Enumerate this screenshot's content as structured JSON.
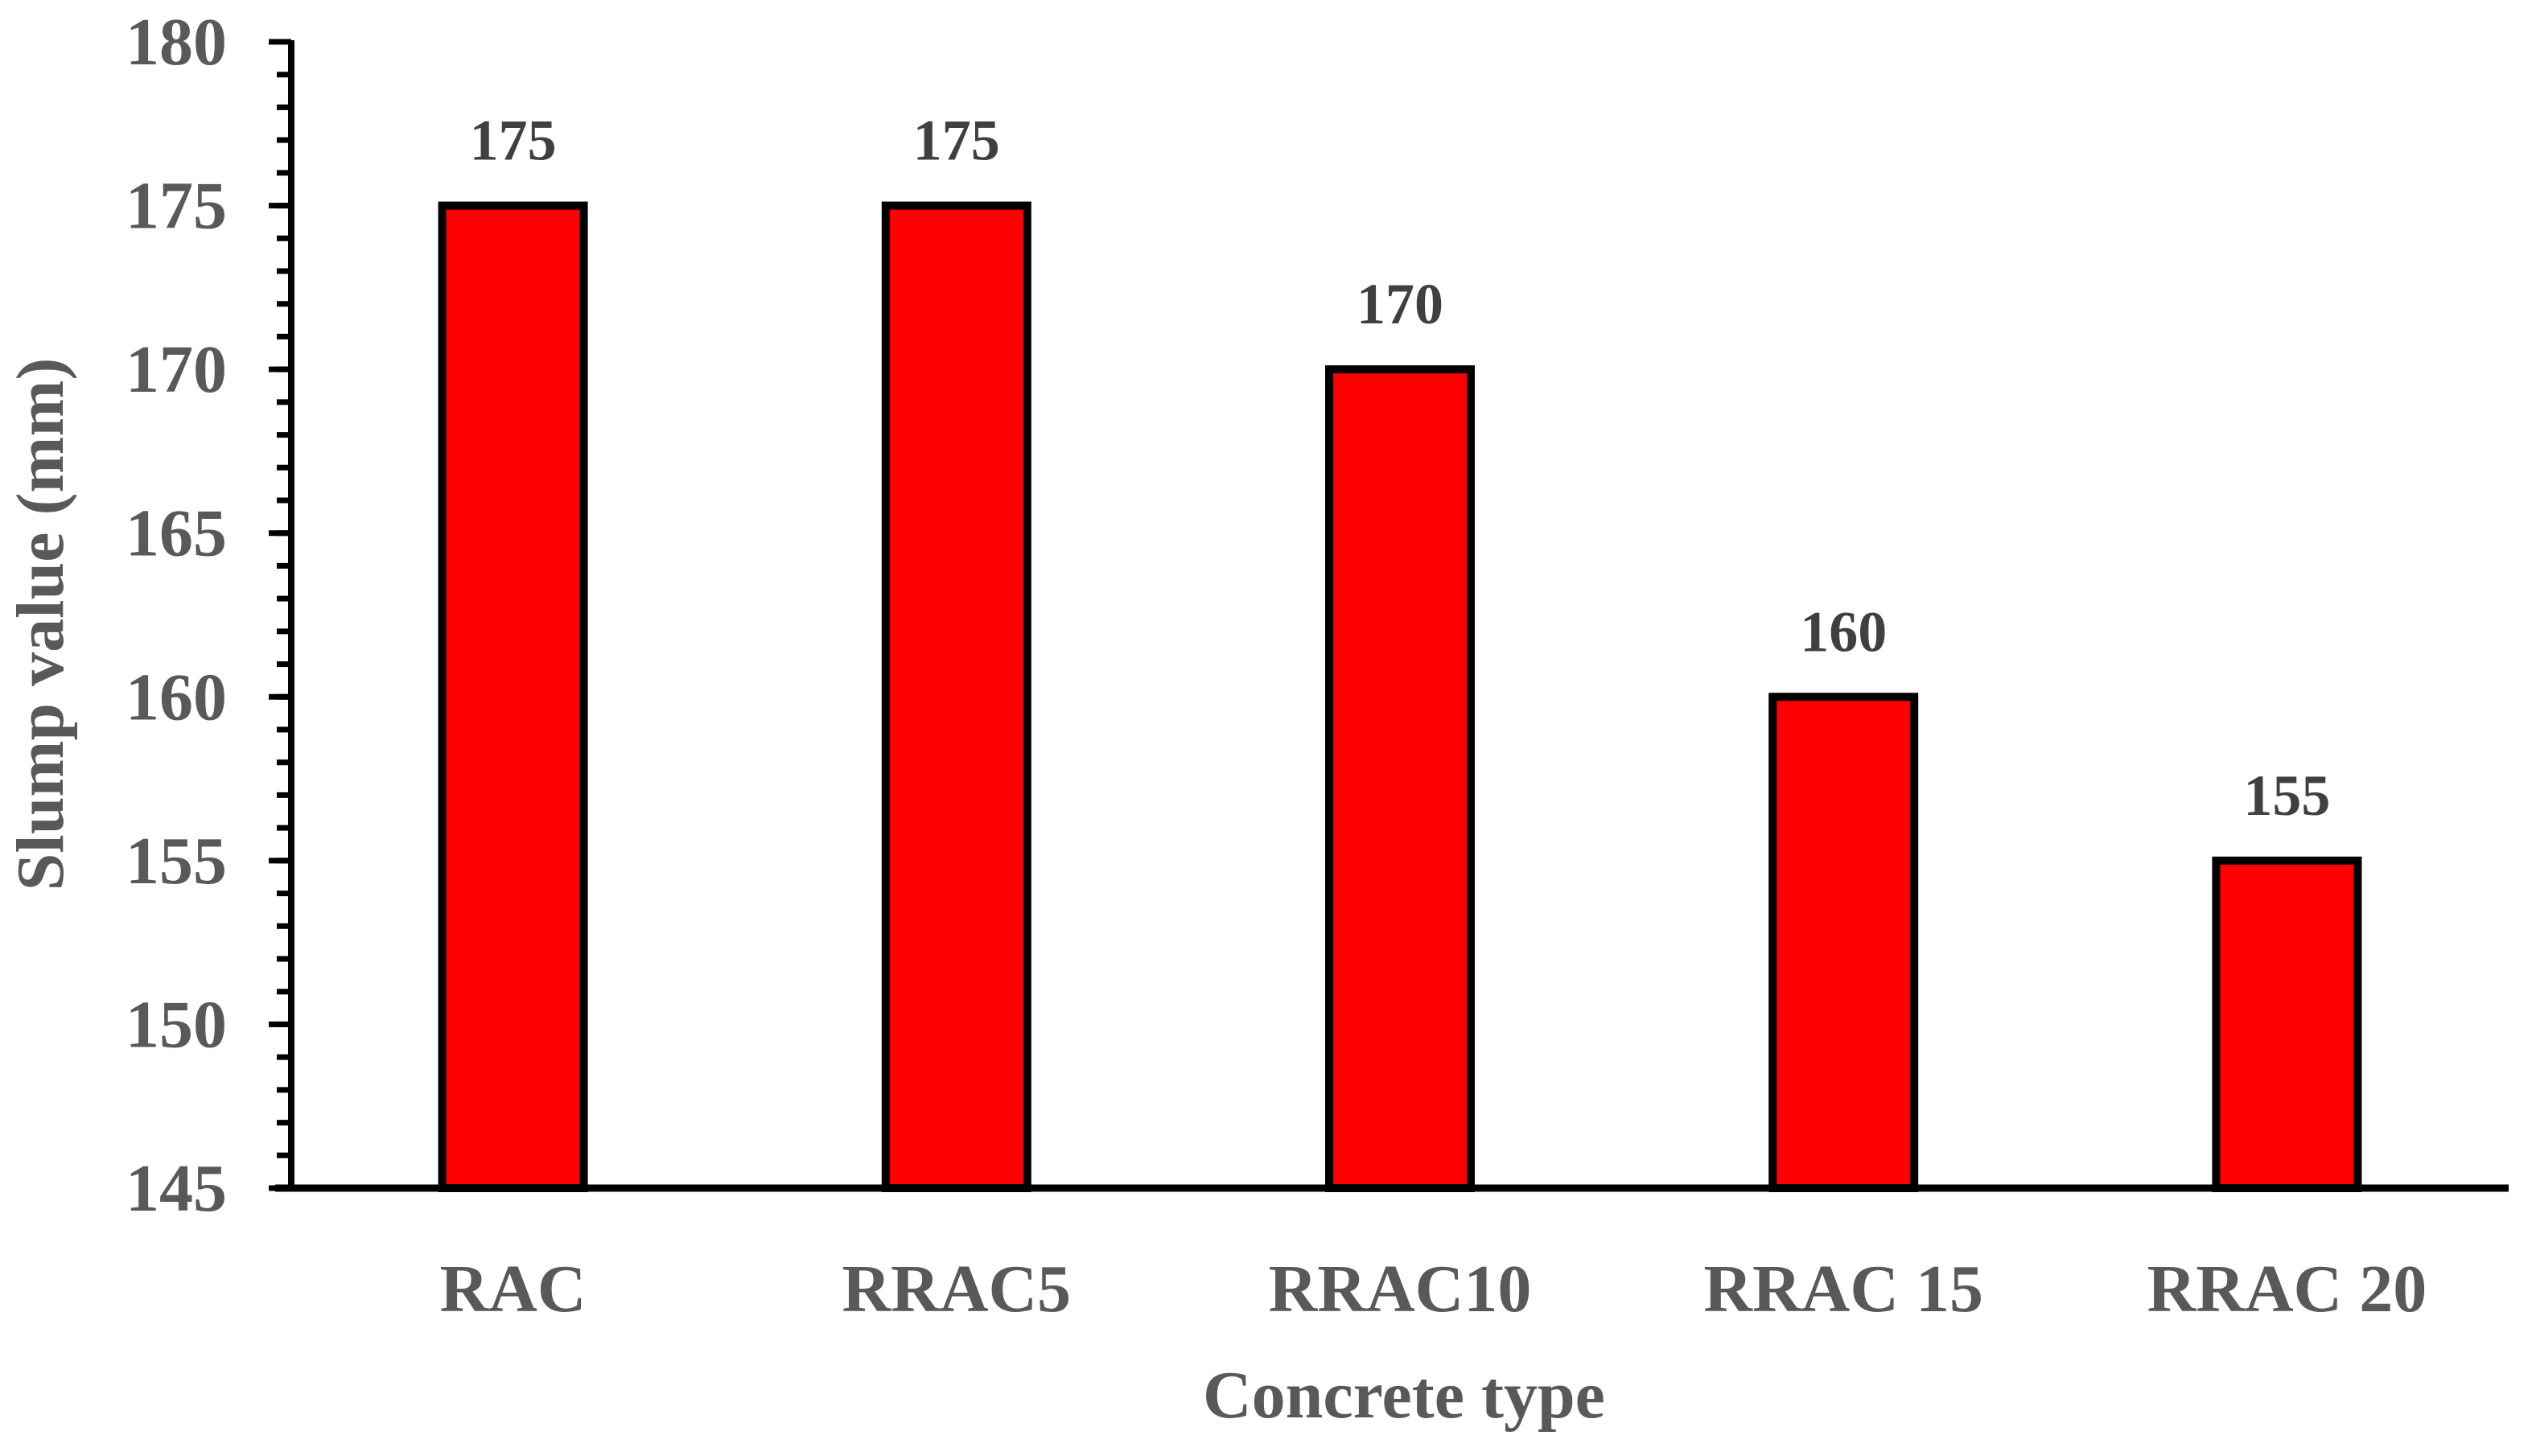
{
  "chart_data": {
    "type": "bar",
    "title": "",
    "xlabel": "Concrete type",
    "ylabel": "Slump value (mm)",
    "categories": [
      "RAC",
      "RRAC5",
      "RRAC10",
      "RRAC 15",
      "RRAC 20"
    ],
    "values": [
      175,
      175,
      170,
      160,
      155
    ],
    "data_labels": [
      "175",
      "175",
      "170",
      "160",
      "155"
    ],
    "ylim": [
      145,
      180
    ],
    "yticks": [
      145,
      150,
      155,
      160,
      165,
      170,
      175,
      180
    ],
    "ytick_labels": [
      "145",
      "150",
      "155",
      "160",
      "165",
      "170",
      "175",
      "180"
    ],
    "minor_tick_step": 1,
    "grid": false,
    "legend": "none",
    "colors": {
      "bar_fill": "#ff0000",
      "bar_stroke": "#000000",
      "axis": "#000000",
      "text": "#595959",
      "data_label": "#404040"
    }
  }
}
